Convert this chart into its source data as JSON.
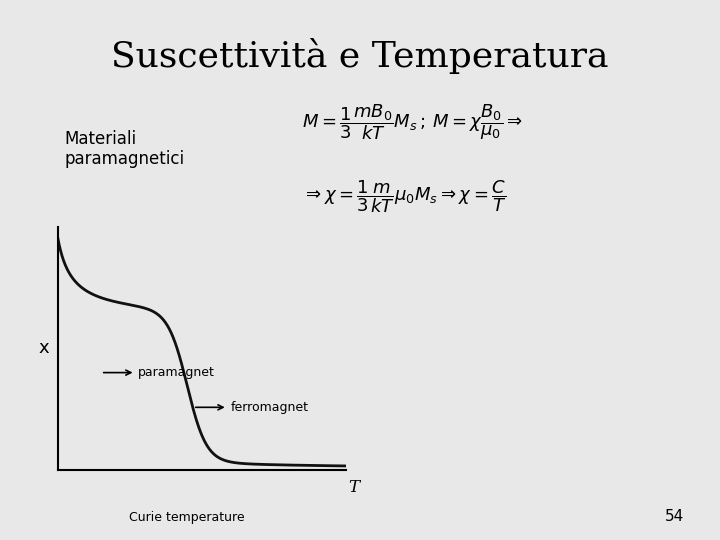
{
  "title": "Suscettività e Temperatura",
  "subtitle_left": "Materiali\nparamagnetici",
  "formula1": "$M = \\dfrac{1}{3}\\dfrac{mB_0}{kT}M_s\\,;\\,M = \\chi\\dfrac{B_0}{\\mu_0}\\Rightarrow$",
  "formula2": "$\\Rightarrow \\chi = \\dfrac{1}{3}\\dfrac{m}{kT}\\mu_0 M_s \\Rightarrow \\chi = \\dfrac{C}{T}$",
  "xlabel_T": "T",
  "ylabel_chi": "x",
  "curie_label": "Curie temperature",
  "paramagnet_label": "paramagnet",
  "ferromagnet_label": "ferromagnet",
  "page_number": "54",
  "bg_color": "#e8e8e8",
  "curve_color": "#111111",
  "title_fontsize": 26,
  "label_fontsize": 11,
  "formula_fontsize": 13
}
